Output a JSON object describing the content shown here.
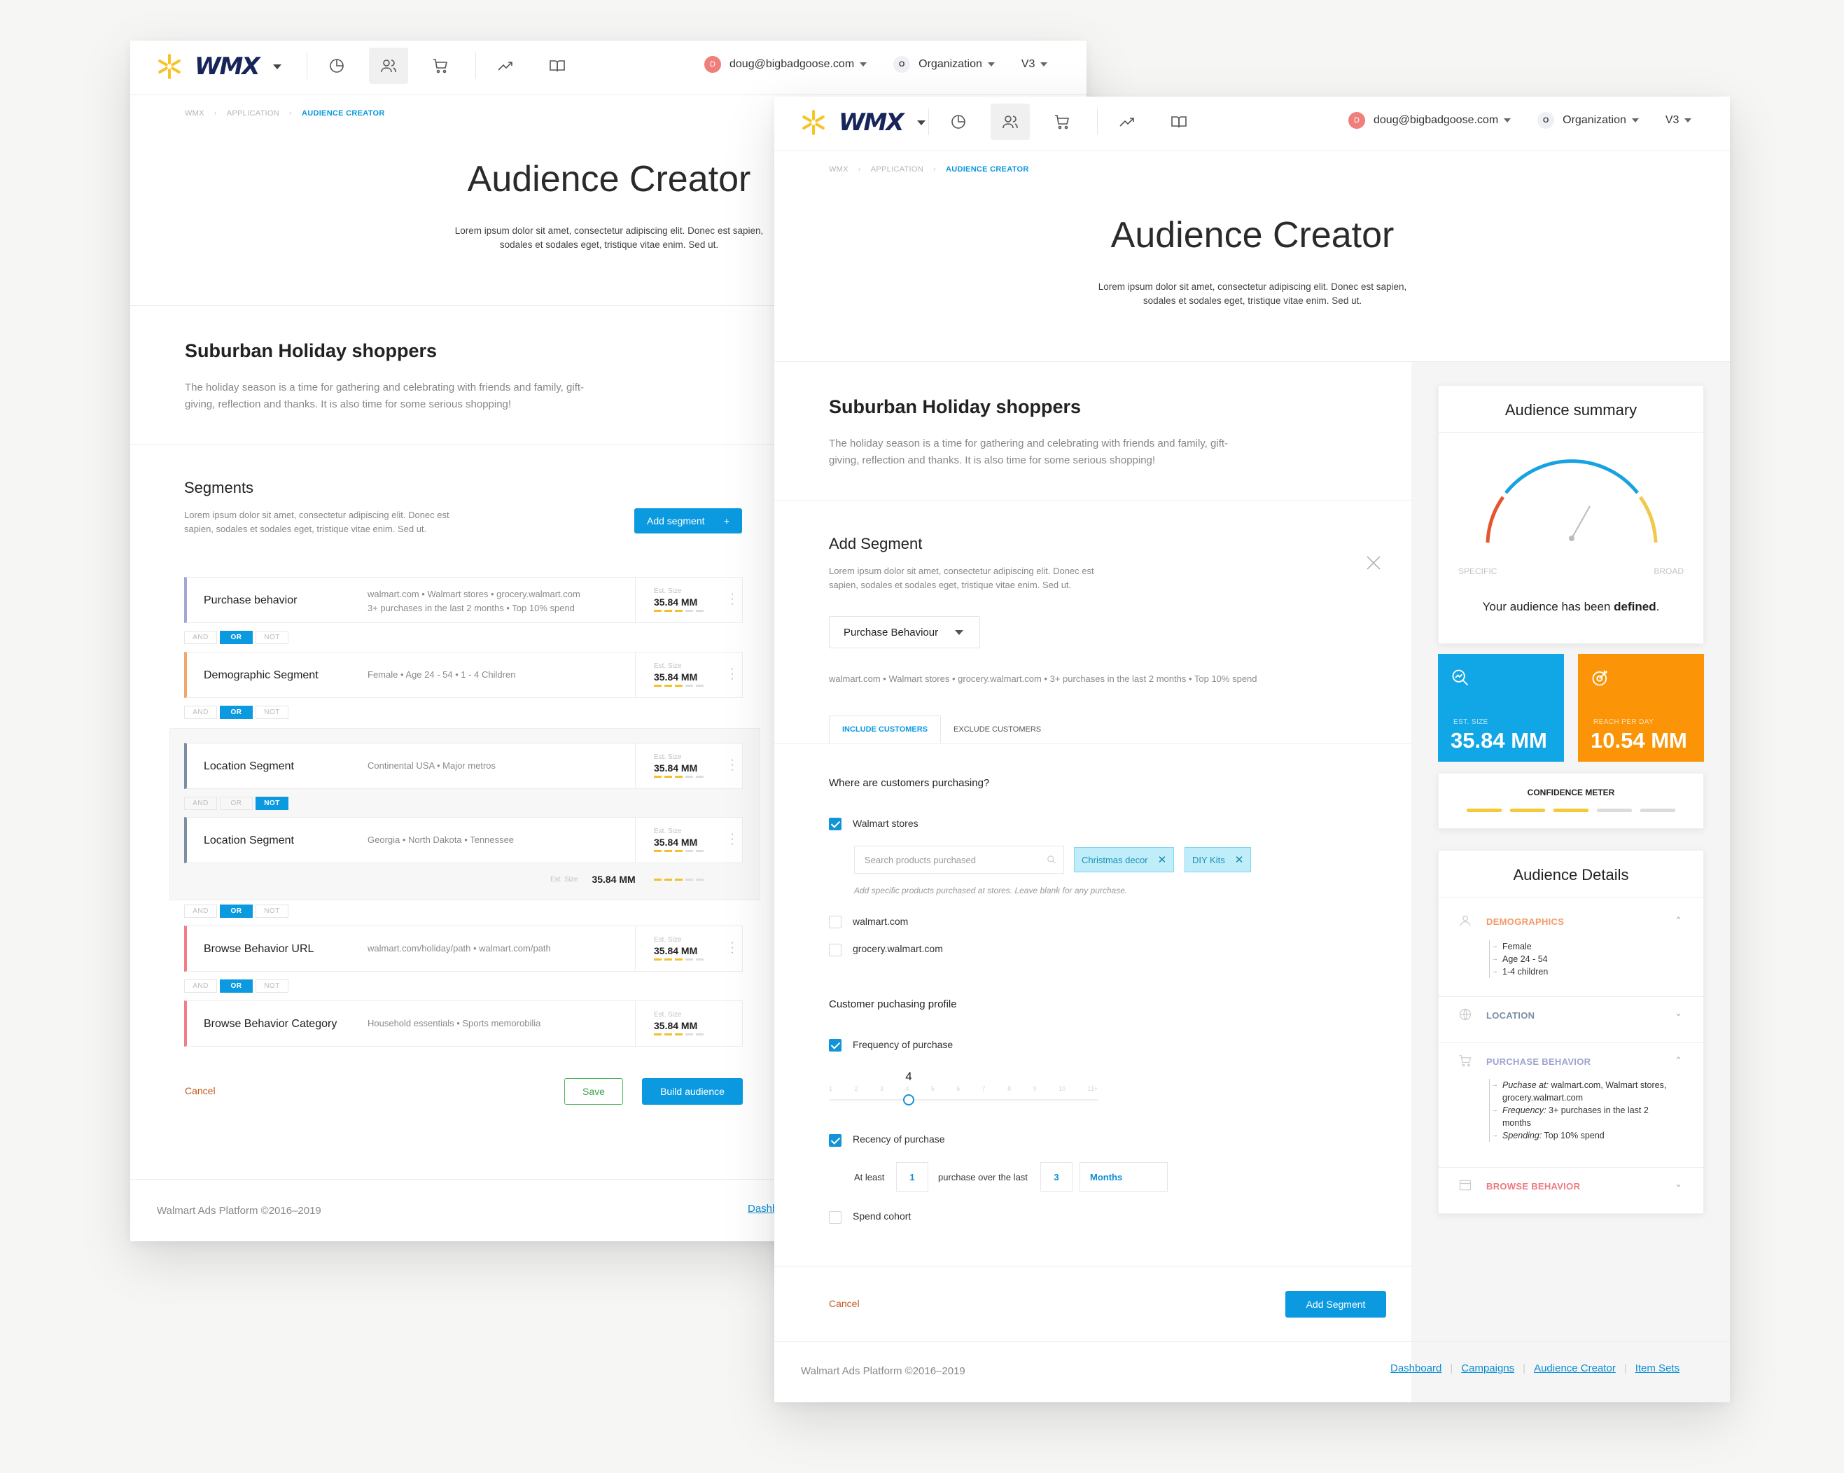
{
  "brand": {
    "logo": "WMX"
  },
  "user": {
    "initial": "D",
    "email": "doug@bigbadgoose.com"
  },
  "org": {
    "initial": "O",
    "label": "Organization"
  },
  "version": "V3",
  "breadcrumb": [
    "WMX",
    "APPLICATION",
    "AUDIENCE CREATOR"
  ],
  "page": {
    "title": "Audience Creator",
    "desc": "Lorem ipsum dolor sit amet, consectetur adipiscing elit. Donec est sapien, sodales et sodales eget, tristique vitae enim. Sed ut."
  },
  "audience": {
    "title": "Suburban Holiday shoppers",
    "desc": "The holiday season is a time for gathering and celebrating with friends and family, gift-giving, reflection and thanks. It is also time for some serious shopping!"
  },
  "segments_section": {
    "title": "Segments",
    "desc": "Lorem ipsum dolor sit amet, consectetur adipiscing elit. Donec est sapien, sodales et sodales eget, tristique vitae enim. Sed ut.",
    "add_button": "Add segment",
    "add_icon": "+"
  },
  "est_label": "Est. Size",
  "segments": [
    {
      "name": "Purchase behavior",
      "meta_line1": "walmart.com  •  Walmart stores  •  grocery.walmart.com",
      "meta_line2": "3+ purchases in the last 2 months  •  Top 10% spend",
      "size": "35.84 MM",
      "color": "#a4a7d3"
    },
    {
      "name": "Demographic Segment",
      "meta_line1": "Female  •  Age 24 - 54  •  1 - 4 Children",
      "meta_line2": "",
      "size": "35.84 MM",
      "color": "#f3a66b"
    },
    {
      "name": "Location Segment",
      "meta_line1": "Continental USA  •  Major metros",
      "meta_line2": "",
      "size": "35.84 MM",
      "color": "#7c8ea3"
    },
    {
      "name": "Location Segment",
      "meta_line1": "Georgia  •  North Dakota  •  Tennessee",
      "meta_line2": "",
      "size": "35.84 MM",
      "color": "#7c8ea3"
    },
    {
      "name": "Browse Behavior URL",
      "meta_line1": "walmart.com/holiday/path  •  walmart.com/path",
      "meta_line2": "",
      "size": "35.84 MM",
      "color": "#ef7f84"
    },
    {
      "name": "Browse Behavior Category",
      "meta_line1": "Household essentials  •  Sports memorobilia",
      "meta_line2": "",
      "size": "35.84 MM",
      "color": "#ef7f84"
    }
  ],
  "logic": {
    "and": "AND",
    "or": "OR",
    "not": "NOT"
  },
  "group_total": {
    "label": "Est. Size",
    "size": "35.84 MM"
  },
  "actions": {
    "cancel": "Cancel",
    "save": "Save",
    "build": "Build audience",
    "add_segment": "Add Segment"
  },
  "footer": {
    "copyright": "Walmart Ads Platform ©2016–2019",
    "links": [
      "Dashboard",
      "Campaigns",
      "Audience Creator",
      "Item Sets"
    ],
    "partial_link": "Dashb"
  },
  "add_segment": {
    "title": "Add Segment",
    "desc": "Lorem ipsum dolor sit amet, consectetur adipiscing elit. Donec est sapien, sodales et sodales eget, tristique vitae enim. Sed ut.",
    "type": "Purchase Behaviour",
    "summary": "walmart.com  •  Walmart stores  •  grocery.walmart.com  •  3+ purchases in the last 2 months  •  Top 10% spend",
    "tabs": [
      "INCLUDE CUSTOMERS",
      "EXCLUDE CUSTOMERS"
    ],
    "q1": "Where are customers purchasing?",
    "channels": [
      {
        "label": "Walmart stores",
        "checked": true
      },
      {
        "label": "walmart.com",
        "checked": false
      },
      {
        "label": "grocery.walmart.com",
        "checked": false
      }
    ],
    "search_placeholder": "Search products purchased",
    "chips": [
      "Christmas decor",
      "DIY Kits"
    ],
    "hint": "Add specific products purchased at stores. Leave blank for any purchase.",
    "q2": "Customer puchasing profile",
    "frequency": {
      "label": "Frequency of purchase",
      "value": "4",
      "ticks": [
        "1",
        "2",
        "3",
        "4",
        "5",
        "6",
        "7",
        "8",
        "9",
        "10",
        "11+"
      ]
    },
    "recency": {
      "label": "Recency of purchase",
      "at_least": "At least",
      "count": "1",
      "over": "purchase over the last",
      "period": "3",
      "unit": "Months"
    },
    "spend": "Spend cohort"
  },
  "summary": {
    "title": "Audience summary",
    "specific": "SPECIFIC",
    "broad": "BROAD",
    "defined_prefix": "Your audience has been ",
    "defined_word": "defined",
    "defined_suffix": "."
  },
  "tiles": [
    {
      "label": "EST. SIZE",
      "value": "35.84 MM",
      "color": "#11a7e6"
    },
    {
      "label": "REACH PER DAY",
      "value": "10.54 MM",
      "color": "#fb9507"
    }
  ],
  "confidence": {
    "title": "CONFIDENCE METER",
    "level": 3,
    "of": 5
  },
  "details": {
    "title": "Audience Details",
    "sections": [
      {
        "name": "DEMOGRAPHICS",
        "color": "#f39a68",
        "items": [
          "Female",
          "Age 24 - 54",
          "1-4 children"
        ]
      },
      {
        "name": "LOCATION",
        "color": "#7b8fa4",
        "items": []
      },
      {
        "name": "PURCHASE BEHAVIOR",
        "color": "#9ea3cf",
        "items_rich": [
          {
            "k": "Puchase at:",
            "v": " walmart.com, Walmart stores, grocery.walmart.com"
          },
          {
            "k": "Frequency:",
            "v": " 3+ purchases in the last 2 months"
          },
          {
            "k": "Spending:",
            "v": " Top 10% spend"
          }
        ]
      },
      {
        "name": "BROWSE BEHAVIOR",
        "color": "#ec7b82",
        "items": []
      }
    ]
  }
}
